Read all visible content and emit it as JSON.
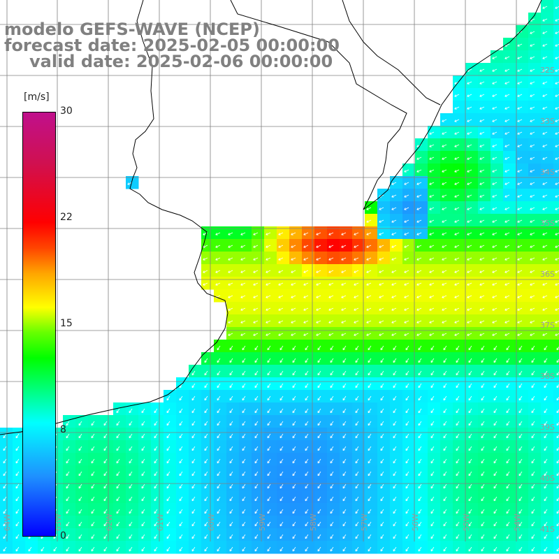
{
  "title": {
    "line1": "modelo GEFS-WAVE (NCEP)",
    "line2": "forecast date: 2025-02-05 00:00:00",
    "line3": "valid date: 2025-02-06 00:00:00"
  },
  "colorbar": {
    "unit": "[m/s]",
    "ticks": [
      "30",
      "22",
      "15",
      "8",
      "0"
    ],
    "tick_values": [
      30,
      22,
      15,
      8,
      0
    ],
    "colors": [
      "#0000ff",
      "#1e90ff",
      "#00ffff",
      "#00ff00",
      "#ffff00",
      "#ffa500",
      "#ff0000",
      "#c0108c"
    ]
  },
  "map": {
    "field": "wind speed",
    "lat_labels": [
      "32S",
      "33S",
      "34S",
      "35S",
      "36S",
      "37S",
      "38S",
      "39S",
      "40S",
      "41S"
    ],
    "lon_labels": [
      "64W",
      "63W",
      "62W",
      "61W",
      "60W",
      "59W",
      "58W",
      "57W",
      "56W",
      "55W",
      "54W"
    ],
    "land_color": "#ffffff",
    "grid_color": "#808080",
    "vector_color": "#ffffff"
  }
}
